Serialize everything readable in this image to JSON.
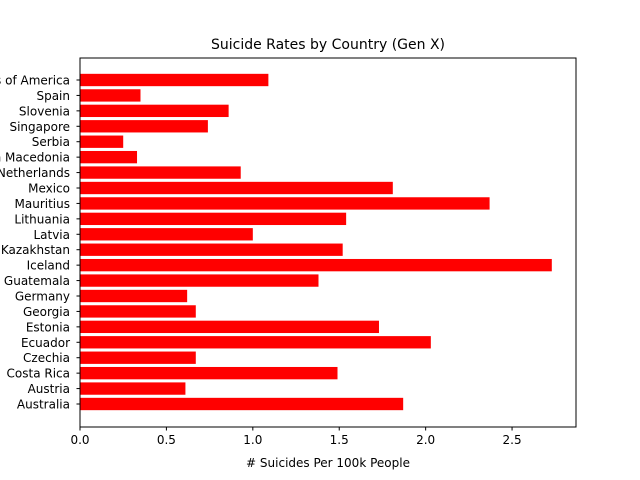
{
  "chart_data": {
    "type": "bar",
    "orientation": "horizontal",
    "title": "Suicide Rates by Country (Gen X)",
    "xlabel": "# Suicides Per 100k People",
    "ylabel": "",
    "xlim": [
      0,
      2.87
    ],
    "xticks": [
      "0.0",
      "0.5",
      "1.0",
      "1.5",
      "2.0",
      "2.5"
    ],
    "xtick_values": [
      0,
      0.5,
      1.0,
      1.5,
      2.0,
      2.5
    ],
    "grid": false,
    "bar_color": "#ff0000",
    "categories": [
      "Australia",
      "Austria",
      "Costa Rica",
      "Czechia",
      "Ecuador",
      "Estonia",
      "Georgia",
      "Germany",
      "Guatemala",
      "Iceland",
      "Kazakhstan",
      "Latvia",
      "Lithuania",
      "Mauritius",
      "Mexico",
      "Netherlands",
      "North Macedonia",
      "Serbia",
      "Singapore",
      "Slovenia",
      "Spain",
      "United States of America"
    ],
    "values": [
      1.87,
      0.61,
      1.49,
      0.67,
      2.03,
      1.73,
      0.67,
      0.62,
      1.38,
      2.73,
      1.52,
      1.0,
      1.54,
      2.37,
      1.81,
      0.93,
      0.33,
      0.25,
      0.74,
      0.86,
      0.35,
      1.09
    ]
  }
}
